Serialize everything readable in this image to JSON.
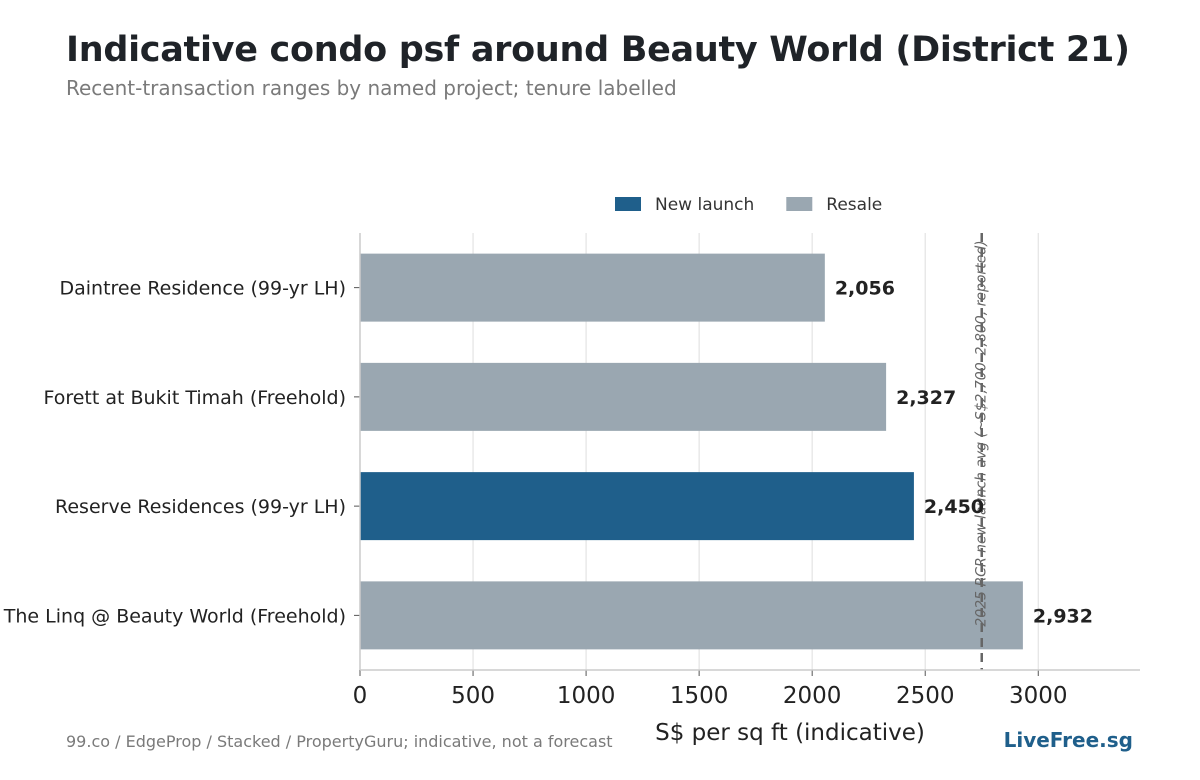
{
  "header": {
    "title": "Indicative condo psf around Beauty World (District 21)",
    "subtitle": "Recent-transaction ranges by named project; tenure labelled"
  },
  "footer": {
    "source": "99.co / EdgeProp / Stacked / PropertyGuru; indicative, not a forecast",
    "brand": "LiveFree.sg"
  },
  "chart_data": {
    "type": "bar",
    "orientation": "horizontal",
    "categories": [
      "Daintree Residence (99-yr LH)",
      "Forett at Bukit Timah (Freehold)",
      "Reserve Residences (99-yr LH)",
      "The Linq @ Beauty World (Freehold)"
    ],
    "values": [
      2056,
      2327,
      2450,
      2932
    ],
    "value_labels": [
      "2,056",
      "2,327",
      "2,450",
      "2,932"
    ],
    "bar_type": [
      "Resale",
      "Resale",
      "New launch",
      "Resale"
    ],
    "legend": [
      {
        "name": "New launch",
        "color": "#1f5f8b"
      },
      {
        "name": "Resale",
        "color": "#9aa7b1"
      }
    ],
    "legend_position": "top-right",
    "xlabel": "S$ per sq ft (indicative)",
    "xlim": [
      0,
      3450
    ],
    "xticks": [
      0,
      500,
      1000,
      1500,
      2000,
      2500,
      3000
    ],
    "grid": "vertical",
    "reference_line": {
      "value": 2750,
      "label": "2025 RCR new-launch avg (~S$2,700–2,800, reported)",
      "color": "#666666"
    }
  }
}
